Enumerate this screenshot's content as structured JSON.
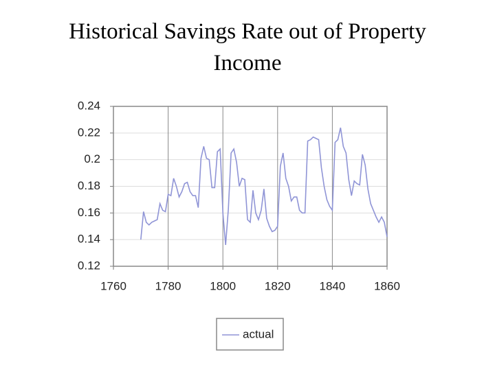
{
  "chart_data": {
    "type": "line",
    "title": "Historical Savings Rate out of Property Income",
    "x": [
      1770,
      1771,
      1772,
      1773,
      1774,
      1775,
      1776,
      1777,
      1778,
      1779,
      1780,
      1781,
      1782,
      1783,
      1784,
      1785,
      1786,
      1787,
      1788,
      1789,
      1790,
      1791,
      1792,
      1793,
      1794,
      1795,
      1796,
      1797,
      1798,
      1799,
      1800,
      1801,
      1802,
      1803,
      1804,
      1805,
      1806,
      1807,
      1808,
      1809,
      1810,
      1811,
      1812,
      1813,
      1814,
      1815,
      1816,
      1817,
      1818,
      1819,
      1820,
      1821,
      1822,
      1823,
      1824,
      1825,
      1826,
      1827,
      1828,
      1829,
      1830,
      1831,
      1832,
      1833,
      1834,
      1835,
      1836,
      1837,
      1838,
      1839,
      1840,
      1841,
      1842,
      1843,
      1844,
      1845,
      1846,
      1847,
      1848,
      1849,
      1850,
      1851,
      1852,
      1853,
      1854,
      1855,
      1856,
      1857,
      1858,
      1859,
      1860
    ],
    "series": [
      {
        "name": "actual",
        "color": "#8f94d6",
        "values": [
          0.14,
          0.161,
          0.153,
          0.151,
          0.153,
          0.154,
          0.155,
          0.167,
          0.162,
          0.161,
          0.174,
          0.173,
          0.186,
          0.18,
          0.172,
          0.176,
          0.182,
          0.183,
          0.176,
          0.173,
          0.173,
          0.164,
          0.201,
          0.21,
          0.201,
          0.2,
          0.179,
          0.179,
          0.206,
          0.208,
          0.16,
          0.136,
          0.163,
          0.205,
          0.208,
          0.198,
          0.18,
          0.186,
          0.185,
          0.155,
          0.153,
          0.177,
          0.16,
          0.155,
          0.162,
          0.178,
          0.156,
          0.15,
          0.146,
          0.147,
          0.15,
          0.195,
          0.205,
          0.186,
          0.18,
          0.169,
          0.172,
          0.172,
          0.162,
          0.16,
          0.16,
          0.214,
          0.215,
          0.217,
          0.216,
          0.215,
          0.194,
          0.18,
          0.17,
          0.165,
          0.162,
          0.213,
          0.215,
          0.224,
          0.21,
          0.205,
          0.185,
          0.173,
          0.184,
          0.182,
          0.181,
          0.204,
          0.196,
          0.178,
          0.167,
          0.162,
          0.157,
          0.153,
          0.157,
          0.153,
          0.142
        ]
      }
    ],
    "xlim": [
      1760,
      1860
    ],
    "xticks": [
      1760,
      1780,
      1800,
      1820,
      1840,
      1860
    ],
    "ylim": [
      0.12,
      0.24
    ],
    "yticks": [
      0.24,
      0.22,
      0.2,
      0.18,
      0.16,
      0.14,
      0.12
    ],
    "grid": true,
    "legend": "bottom"
  }
}
